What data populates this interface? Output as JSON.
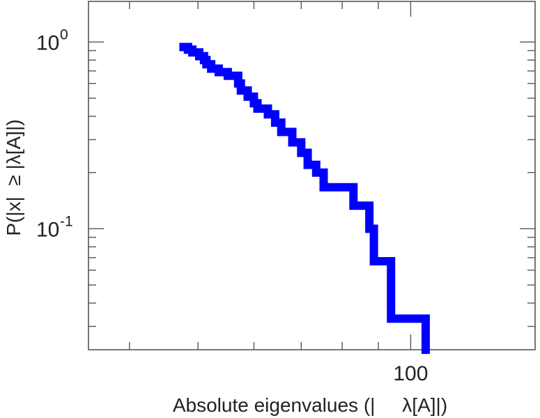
{
  "chart_data": {
    "type": "line",
    "step": true,
    "xscale": "log",
    "yscale": "log",
    "xlim": [
      35,
      150
    ],
    "ylim": [
      0.0225,
      1.65
    ],
    "xlabel": "Absolute eigenvalues (|     λ[A]|)",
    "ylabel": "P(|x|  ≥ |λ[A]|)",
    "x_tick_labels": [
      {
        "value": 100,
        "label": "100"
      }
    ],
    "y_tick_labels": [
      {
        "value": 1,
        "mantissa": "10",
        "exponent": "0"
      },
      {
        "value": 0.1,
        "mantissa": "10",
        "exponent": "-1"
      }
    ],
    "grid": false,
    "color": "#0000ff",
    "series": [
      {
        "points": [
          [
            47.7,
            0.94
          ],
          [
            48.4,
            0.94
          ],
          [
            48.4,
            0.91
          ],
          [
            49.1,
            0.91
          ],
          [
            49.1,
            0.88
          ],
          [
            50.2,
            0.88
          ],
          [
            50.2,
            0.84
          ],
          [
            51.0,
            0.84
          ],
          [
            51.0,
            0.8
          ],
          [
            51.4,
            0.8
          ],
          [
            51.4,
            0.76
          ],
          [
            52.2,
            0.76
          ],
          [
            52.2,
            0.72
          ],
          [
            53.5,
            0.72
          ],
          [
            53.5,
            0.69
          ],
          [
            55.1,
            0.69
          ],
          [
            55.1,
            0.66
          ],
          [
            57.0,
            0.66
          ],
          [
            57.0,
            0.6
          ],
          [
            57.5,
            0.6
          ],
          [
            57.5,
            0.55
          ],
          [
            58.8,
            0.55
          ],
          [
            58.8,
            0.51
          ],
          [
            60.0,
            0.51
          ],
          [
            60.0,
            0.47
          ],
          [
            60.7,
            0.47
          ],
          [
            60.7,
            0.44
          ],
          [
            62.8,
            0.44
          ],
          [
            62.8,
            0.41
          ],
          [
            64.3,
            0.41
          ],
          [
            64.3,
            0.37
          ],
          [
            65.6,
            0.37
          ],
          [
            65.6,
            0.33
          ],
          [
            68.0,
            0.33
          ],
          [
            68.0,
            0.29
          ],
          [
            70.0,
            0.29
          ],
          [
            70.0,
            0.255
          ],
          [
            71.5,
            0.255
          ],
          [
            71.5,
            0.22
          ],
          [
            73.5,
            0.22
          ],
          [
            73.5,
            0.2
          ],
          [
            75.3,
            0.2
          ],
          [
            75.3,
            0.167
          ],
          [
            83.0,
            0.167
          ],
          [
            83.0,
            0.133
          ],
          [
            87.4,
            0.133
          ],
          [
            87.4,
            0.1
          ],
          [
            88.7,
            0.1
          ],
          [
            88.7,
            0.067
          ],
          [
            93.8,
            0.067
          ],
          [
            93.8,
            0.033
          ],
          [
            105.0,
            0.033
          ],
          [
            105.0,
            0.0225
          ]
        ]
      }
    ]
  }
}
